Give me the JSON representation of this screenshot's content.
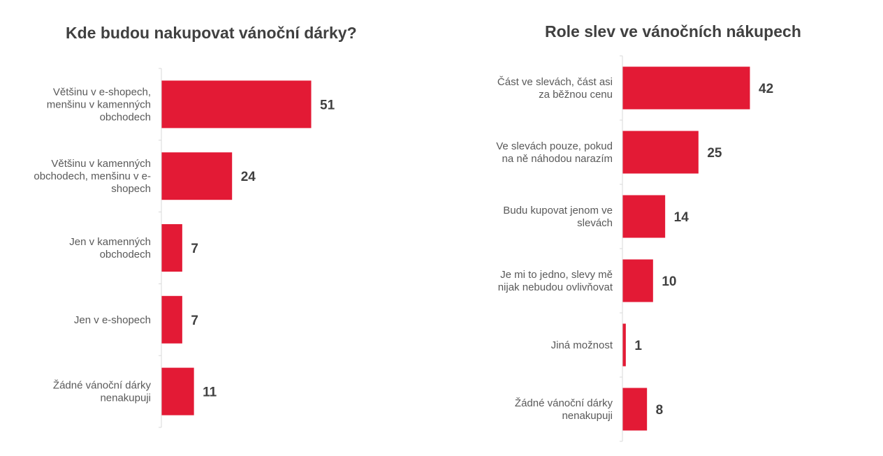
{
  "colors": {
    "bar": "#e31a35",
    "axis": "#d9d9d9",
    "text": "#595959",
    "value_text": "#404040"
  },
  "chart_data": [
    {
      "type": "bar",
      "orientation": "horizontal",
      "title": "Kde budou nakupovat vánoční dárky?",
      "categories": [
        [
          "Většinu v e-shopech,",
          "menšinu v kamenných",
          "obchodech"
        ],
        [
          "Většinu v kamenných",
          "obchodech, menšinu v e-",
          "shopech"
        ],
        [
          "Jen v kamenných",
          "obchodech"
        ],
        [
          "Jen v e-shopech"
        ],
        [
          "Žádné vánoční dárky",
          "nenakupuji"
        ]
      ],
      "values": [
        51,
        24,
        7,
        7,
        11
      ],
      "data_labels": [
        "51",
        "24",
        "7",
        "7",
        "11"
      ],
      "xlim": [
        0,
        51
      ],
      "grid": false,
      "legend": "none"
    },
    {
      "type": "bar",
      "orientation": "horizontal",
      "title": "Role slev ve vánočních nákupech",
      "categories": [
        [
          "Část ve slevách, část asi",
          "za běžnou cenu"
        ],
        [
          "Ve slevách pouze, pokud",
          "na ně náhodou narazím"
        ],
        [
          "Budu kupovat jenom ve",
          "slevách"
        ],
        [
          "Je mi to jedno, slevy mě",
          "nijak nebudou ovlivňovat"
        ],
        [
          "Jiná možnost"
        ],
        [
          "Žádné vánoční dárky",
          "nenakupuji"
        ]
      ],
      "values": [
        42,
        25,
        14,
        10,
        1,
        8
      ],
      "data_labels": [
        "42",
        "25",
        "14",
        "10",
        "1",
        "8"
      ],
      "xlim": [
        0,
        42
      ],
      "grid": false,
      "legend": "none"
    }
  ]
}
